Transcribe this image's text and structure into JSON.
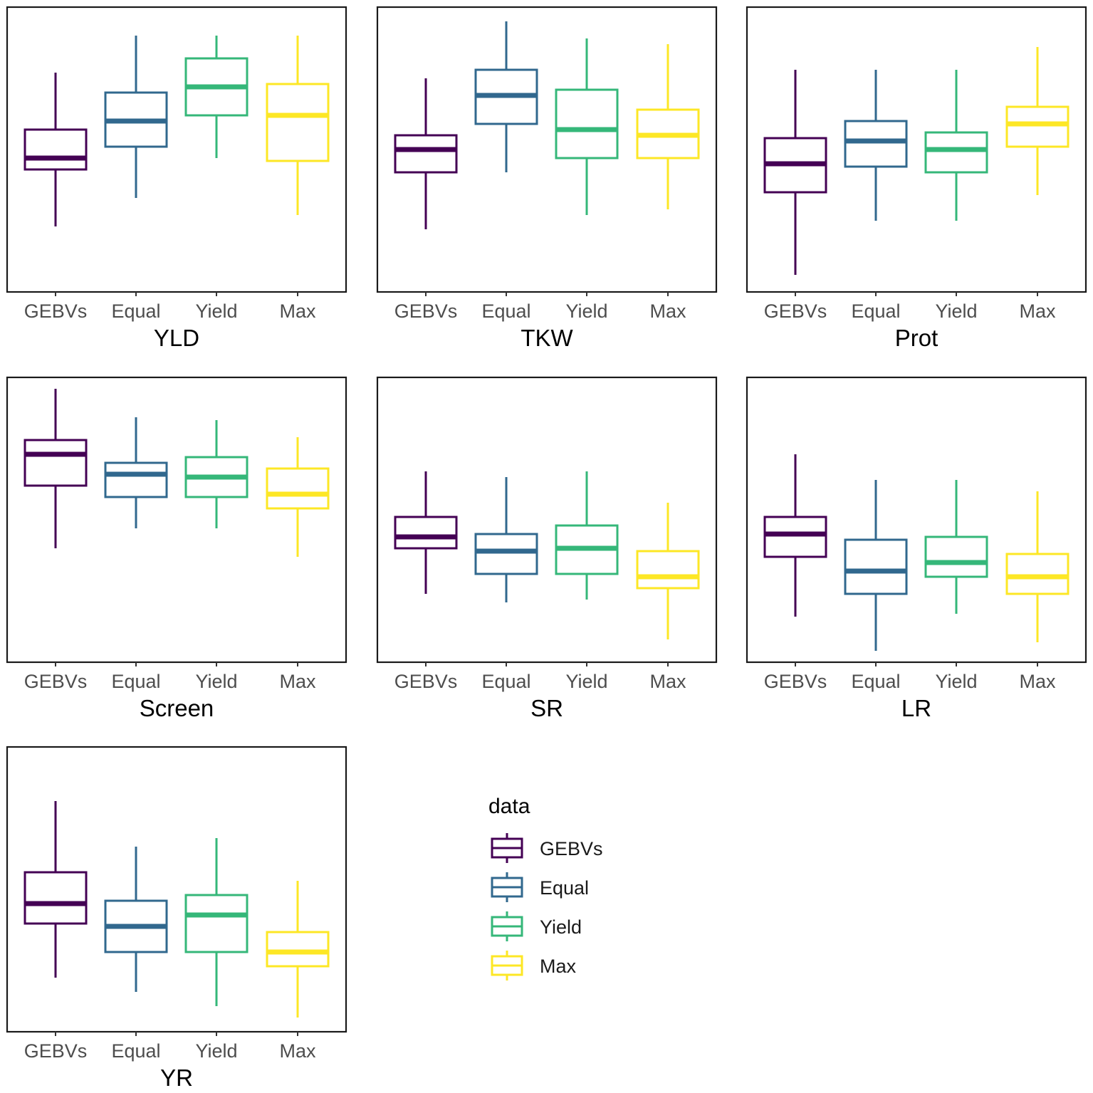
{
  "chart_data": {
    "type": "boxplot",
    "x_categories": [
      "GEBVs",
      "Equal",
      "Yield",
      "Max"
    ],
    "colors": {
      "GEBVs": "#440154",
      "Equal": "#31688e",
      "Yield": "#35b779",
      "Max": "#fde725"
    },
    "y_range": [
      0,
      100
    ],
    "y_axis_text": "none",
    "legend": {
      "title": "data",
      "position": "bottom-center",
      "entries": [
        "GEBVs",
        "Equal",
        "Yield",
        "Max"
      ]
    },
    "panels": [
      {
        "title": "YLD",
        "series": [
          {
            "name": "GEBVs",
            "min": 23,
            "q1": 43,
            "median": 47,
            "q3": 57,
            "max": 77
          },
          {
            "name": "Equal",
            "min": 33,
            "q1": 51,
            "median": 60,
            "q3": 70,
            "max": 90
          },
          {
            "name": "Yield",
            "min": 47,
            "q1": 62,
            "median": 72,
            "q3": 82,
            "max": 90
          },
          {
            "name": "Max",
            "min": 27,
            "q1": 46,
            "median": 62,
            "q3": 73,
            "max": 90
          }
        ]
      },
      {
        "title": "TKW",
        "series": [
          {
            "name": "GEBVs",
            "min": 22,
            "q1": 42,
            "median": 50,
            "q3": 55,
            "max": 75
          },
          {
            "name": "Equal",
            "min": 42,
            "q1": 59,
            "median": 69,
            "q3": 78,
            "max": 95
          },
          {
            "name": "Yield",
            "min": 27,
            "q1": 47,
            "median": 57,
            "q3": 71,
            "max": 89
          },
          {
            "name": "Max",
            "min": 29,
            "q1": 47,
            "median": 55,
            "q3": 64,
            "max": 87
          }
        ]
      },
      {
        "title": "Prot",
        "series": [
          {
            "name": "GEBVs",
            "min": 6,
            "q1": 35,
            "median": 45,
            "q3": 54,
            "max": 78
          },
          {
            "name": "Equal",
            "min": 25,
            "q1": 44,
            "median": 53,
            "q3": 60,
            "max": 78
          },
          {
            "name": "Yield",
            "min": 25,
            "q1": 42,
            "median": 50,
            "q3": 56,
            "max": 78
          },
          {
            "name": "Max",
            "min": 34,
            "q1": 51,
            "median": 59,
            "q3": 65,
            "max": 86
          }
        ]
      },
      {
        "title": "Screen",
        "series": [
          {
            "name": "GEBVs",
            "min": 40,
            "q1": 62,
            "median": 73,
            "q3": 78,
            "max": 96
          },
          {
            "name": "Equal",
            "min": 47,
            "q1": 58,
            "median": 66,
            "q3": 70,
            "max": 86
          },
          {
            "name": "Yield",
            "min": 47,
            "q1": 58,
            "median": 65,
            "q3": 72,
            "max": 85
          },
          {
            "name": "Max",
            "min": 37,
            "q1": 54,
            "median": 59,
            "q3": 68,
            "max": 79
          }
        ]
      },
      {
        "title": "SR",
        "series": [
          {
            "name": "GEBVs",
            "min": 24,
            "q1": 40,
            "median": 44,
            "q3": 51,
            "max": 67
          },
          {
            "name": "Equal",
            "min": 21,
            "q1": 31,
            "median": 39,
            "q3": 45,
            "max": 65
          },
          {
            "name": "Yield",
            "min": 22,
            "q1": 31,
            "median": 40,
            "q3": 48,
            "max": 67
          },
          {
            "name": "Max",
            "min": 8,
            "q1": 26,
            "median": 30,
            "q3": 39,
            "max": 56
          }
        ]
      },
      {
        "title": "LR",
        "series": [
          {
            "name": "GEBVs",
            "min": 16,
            "q1": 37,
            "median": 45,
            "q3": 51,
            "max": 73
          },
          {
            "name": "Equal",
            "min": 4,
            "q1": 24,
            "median": 32,
            "q3": 43,
            "max": 64
          },
          {
            "name": "Yield",
            "min": 17,
            "q1": 30,
            "median": 35,
            "q3": 44,
            "max": 64
          },
          {
            "name": "Max",
            "min": 7,
            "q1": 24,
            "median": 30,
            "q3": 38,
            "max": 60
          }
        ]
      },
      {
        "title": "YR",
        "series": [
          {
            "name": "GEBVs",
            "min": 19,
            "q1": 38,
            "median": 45,
            "q3": 56,
            "max": 81
          },
          {
            "name": "Equal",
            "min": 14,
            "q1": 28,
            "median": 37,
            "q3": 46,
            "max": 65
          },
          {
            "name": "Yield",
            "min": 9,
            "q1": 28,
            "median": 41,
            "q3": 48,
            "max": 68
          },
          {
            "name": "Max",
            "min": 5,
            "q1": 23,
            "median": 28,
            "q3": 35,
            "max": 53
          }
        ]
      }
    ]
  }
}
